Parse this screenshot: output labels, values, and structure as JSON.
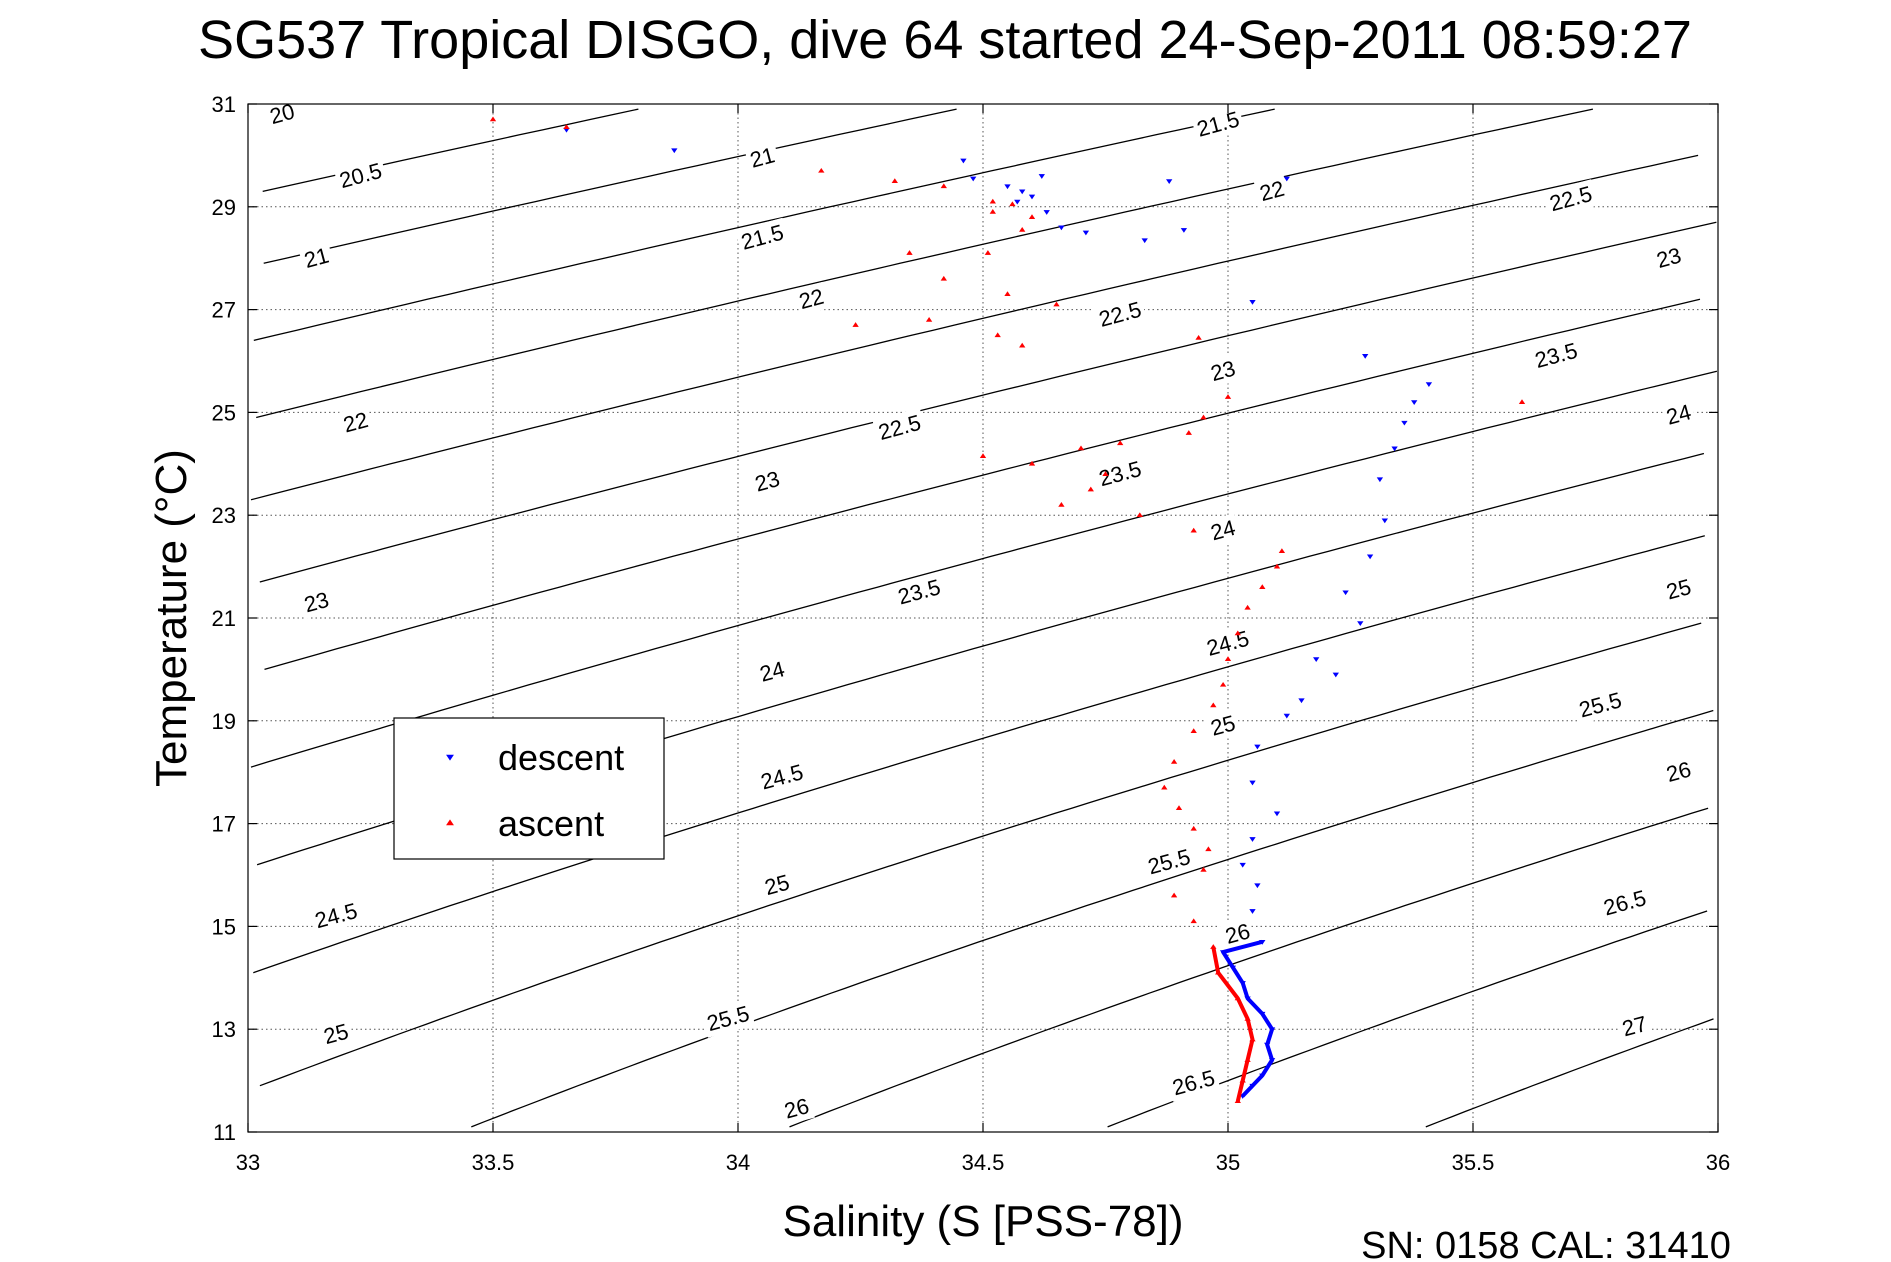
{
  "chart_data": {
    "type": "scatter",
    "title": "SG537 Tropical DISGO, dive 64 started 24-Sep-2011 08:59:27",
    "xlabel": "Salinity (S [PSS-78])",
    "ylabel": "Temperature (°C)",
    "footer": "SN: 0158  CAL: 31410",
    "xlim": [
      33,
      36
    ],
    "ylim": [
      11,
      31
    ],
    "xticks": [
      "33",
      "33.5",
      "34",
      "34.5",
      "35",
      "35.5",
      "36"
    ],
    "yticks": [
      "11",
      "13",
      "15",
      "17",
      "19",
      "21",
      "23",
      "25",
      "27",
      "29",
      "31"
    ],
    "grid": true,
    "legend_position": "middle-left",
    "density_contours": [
      {
        "sigma": "20",
        "label_at": [
          33.07,
          30.8
        ]
      },
      {
        "sigma": "20.5",
        "label_at": [
          33.23,
          29.6
        ]
      },
      {
        "sigma": "21",
        "label_at": [
          33.14,
          28.0
        ],
        "label2_at": [
          34.05,
          29.95
        ]
      },
      {
        "sigma": "21.5",
        "label_at": [
          34.05,
          28.4
        ],
        "label2_at": [
          34.98,
          30.6
        ]
      },
      {
        "sigma": "22",
        "label_at": [
          33.22,
          24.8
        ],
        "label2_at": [
          34.15,
          27.2
        ],
        "label3_at": [
          35.09,
          29.3
        ]
      },
      {
        "sigma": "22.5",
        "label_at": [
          34.33,
          24.7
        ],
        "label2_at": [
          34.78,
          26.9
        ],
        "label3_at": [
          35.7,
          29.15
        ]
      },
      {
        "sigma": "23",
        "label_at": [
          33.14,
          21.3
        ],
        "label2_at": [
          34.06,
          23.65
        ],
        "label3_at": [
          34.99,
          25.8
        ],
        "label4_at": [
          35.9,
          28.0
        ]
      },
      {
        "sigma": "23.5",
        "label_at": [
          34.37,
          21.5
        ],
        "label2_at": [
          34.78,
          23.8
        ],
        "label3_at": [
          35.67,
          26.1
        ]
      },
      {
        "sigma": "24",
        "label_at": [
          34.07,
          19.95
        ],
        "label2_at": [
          34.99,
          22.7
        ],
        "label3_at": [
          35.92,
          24.95
        ]
      },
      {
        "sigma": "24.5",
        "label_at": [
          33.18,
          15.2
        ],
        "label2_at": [
          34.09,
          17.9
        ],
        "label3_at": [
          35.0,
          20.5
        ]
      },
      {
        "sigma": "25",
        "label_at": [
          33.18,
          12.9
        ],
        "label2_at": [
          34.08,
          15.8
        ],
        "label3_at": [
          34.99,
          18.9
        ],
        "label4_at": [
          35.92,
          21.55
        ]
      },
      {
        "sigma": "25.5",
        "label_at": [
          33.98,
          13.2
        ],
        "label2_at": [
          34.88,
          16.25
        ],
        "label3_at": [
          35.76,
          19.3
        ]
      },
      {
        "sigma": "26",
        "label_at": [
          34.12,
          11.45
        ],
        "label2_at": [
          35.02,
          14.85
        ],
        "label3_at": [
          35.92,
          18.0
        ]
      },
      {
        "sigma": "26.5",
        "label_at": [
          34.93,
          11.95
        ],
        "label2_at": [
          35.81,
          15.45
        ]
      },
      {
        "sigma": "27",
        "label_at": [
          35.83,
          13.05
        ]
      }
    ],
    "series": [
      {
        "name": "descent",
        "color": "#0000ff",
        "marker": "triangle-down",
        "points": [
          [
            33.65,
            30.5
          ],
          [
            33.87,
            30.1
          ],
          [
            34.46,
            29.9
          ],
          [
            34.48,
            29.55
          ],
          [
            34.55,
            29.4
          ],
          [
            34.58,
            29.3
          ],
          [
            34.62,
            29.6
          ],
          [
            34.57,
            29.1
          ],
          [
            34.6,
            29.2
          ],
          [
            34.63,
            28.9
          ],
          [
            34.66,
            28.6
          ],
          [
            34.71,
            28.5
          ],
          [
            34.88,
            29.5
          ],
          [
            34.83,
            28.35
          ],
          [
            34.91,
            28.55
          ],
          [
            35.12,
            29.55
          ],
          [
            35.05,
            27.15
          ],
          [
            35.28,
            26.1
          ],
          [
            35.41,
            25.55
          ],
          [
            35.38,
            25.2
          ],
          [
            35.36,
            24.8
          ],
          [
            35.34,
            24.3
          ],
          [
            35.31,
            23.7
          ],
          [
            35.32,
            22.9
          ],
          [
            35.29,
            22.2
          ],
          [
            35.24,
            21.5
          ],
          [
            35.27,
            20.9
          ],
          [
            35.18,
            20.2
          ],
          [
            35.22,
            19.9
          ],
          [
            35.15,
            19.4
          ],
          [
            35.12,
            19.1
          ],
          [
            35.06,
            18.5
          ],
          [
            35.05,
            17.8
          ],
          [
            35.1,
            17.2
          ],
          [
            35.05,
            16.7
          ],
          [
            35.03,
            16.2
          ],
          [
            35.06,
            15.8
          ],
          [
            35.05,
            15.3
          ],
          [
            35.07,
            14.7
          ],
          [
            34.99,
            14.5
          ],
          [
            35.01,
            14.2
          ],
          [
            35.03,
            13.9
          ],
          [
            35.04,
            13.6
          ],
          [
            35.07,
            13.3
          ],
          [
            35.09,
            13.0
          ],
          [
            35.08,
            12.7
          ],
          [
            35.09,
            12.4
          ],
          [
            35.07,
            12.1
          ],
          [
            35.05,
            11.9
          ],
          [
            35.03,
            11.7
          ]
        ]
      },
      {
        "name": "ascent",
        "color": "#ff0000",
        "marker": "triangle-up",
        "points": [
          [
            33.5,
            30.7
          ],
          [
            33.65,
            30.55
          ],
          [
            34.17,
            29.7
          ],
          [
            34.32,
            29.5
          ],
          [
            34.42,
            29.4
          ],
          [
            34.52,
            29.1
          ],
          [
            34.56,
            29.05
          ],
          [
            34.6,
            28.8
          ],
          [
            34.52,
            28.9
          ],
          [
            34.58,
            28.55
          ],
          [
            34.51,
            28.1
          ],
          [
            34.35,
            28.1
          ],
          [
            34.42,
            27.6
          ],
          [
            34.55,
            27.3
          ],
          [
            34.65,
            27.1
          ],
          [
            34.39,
            26.8
          ],
          [
            34.24,
            26.7
          ],
          [
            34.53,
            26.5
          ],
          [
            34.58,
            26.3
          ],
          [
            34.94,
            26.45
          ],
          [
            35.6,
            25.2
          ],
          [
            35.0,
            25.3
          ],
          [
            34.95,
            24.9
          ],
          [
            34.92,
            24.6
          ],
          [
            34.78,
            24.4
          ],
          [
            34.7,
            24.3
          ],
          [
            34.5,
            24.15
          ],
          [
            34.6,
            24.0
          ],
          [
            34.75,
            23.8
          ],
          [
            34.72,
            23.5
          ],
          [
            34.66,
            23.2
          ],
          [
            34.82,
            23.0
          ],
          [
            34.93,
            22.7
          ],
          [
            35.11,
            22.3
          ],
          [
            35.1,
            22.0
          ],
          [
            35.07,
            21.6
          ],
          [
            35.04,
            21.2
          ],
          [
            35.02,
            20.7
          ],
          [
            35.0,
            20.2
          ],
          [
            34.99,
            19.7
          ],
          [
            34.97,
            19.3
          ],
          [
            34.93,
            18.8
          ],
          [
            34.89,
            18.2
          ],
          [
            34.87,
            17.7
          ],
          [
            34.9,
            17.3
          ],
          [
            34.93,
            16.9
          ],
          [
            34.96,
            16.5
          ],
          [
            34.95,
            16.1
          ],
          [
            34.89,
            15.6
          ],
          [
            34.93,
            15.1
          ],
          [
            34.97,
            14.6
          ],
          [
            34.98,
            14.1
          ],
          [
            35.02,
            13.6
          ],
          [
            35.04,
            13.2
          ],
          [
            35.05,
            12.8
          ],
          [
            35.04,
            12.4
          ],
          [
            35.03,
            12.0
          ],
          [
            35.02,
            11.6
          ]
        ]
      }
    ]
  }
}
